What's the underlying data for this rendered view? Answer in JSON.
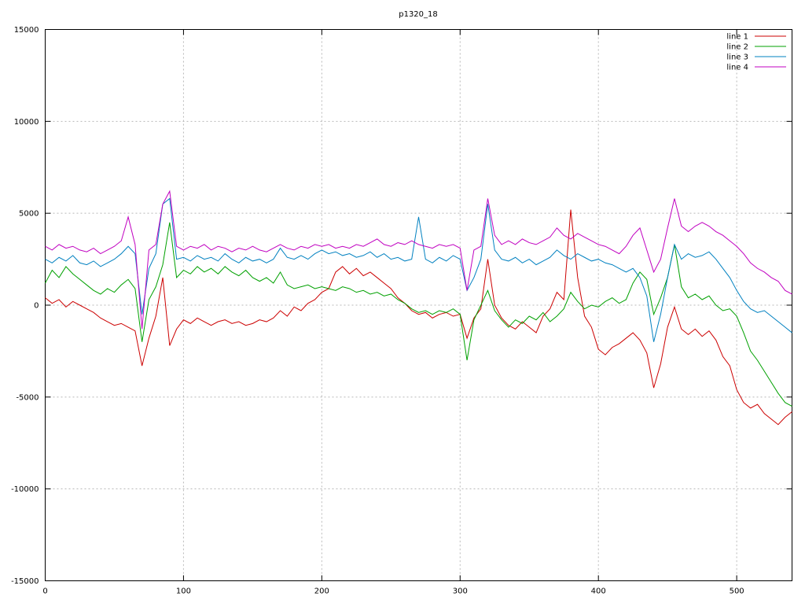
{
  "chart_data": {
    "type": "line",
    "title": "p1320_18",
    "xlabel": "",
    "ylabel": "",
    "xlim": [
      0,
      540
    ],
    "ylim": [
      -15000,
      15000
    ],
    "xticks": [
      0,
      100,
      200,
      300,
      400,
      500
    ],
    "yticks": [
      -15000,
      -10000,
      -5000,
      0,
      5000,
      10000,
      15000
    ],
    "grid": true,
    "legend_position": "top-right",
    "background": "#ffffff",
    "grid_color": "#b8b8b8",
    "border_color": "#000000",
    "x": [
      0,
      5,
      10,
      15,
      20,
      25,
      30,
      35,
      40,
      45,
      50,
      55,
      60,
      65,
      70,
      75,
      80,
      85,
      90,
      95,
      100,
      105,
      110,
      115,
      120,
      125,
      130,
      135,
      140,
      145,
      150,
      155,
      160,
      165,
      170,
      175,
      180,
      185,
      190,
      195,
      200,
      205,
      210,
      215,
      220,
      225,
      230,
      235,
      240,
      245,
      250,
      255,
      260,
      265,
      270,
      275,
      280,
      285,
      290,
      295,
      300,
      305,
      310,
      315,
      320,
      325,
      330,
      335,
      340,
      345,
      350,
      355,
      360,
      365,
      370,
      375,
      380,
      385,
      390,
      395,
      400,
      405,
      410,
      415,
      420,
      425,
      430,
      435,
      440,
      445,
      450,
      455,
      460,
      465,
      470,
      475,
      480,
      485,
      490,
      495,
      500,
      505,
      510,
      515,
      520,
      525,
      530,
      535,
      540
    ],
    "series": [
      {
        "name": "line 1",
        "color": "#cc0000",
        "values": [
          400,
          100,
          300,
          -100,
          200,
          0,
          -200,
          -400,
          -700,
          -900,
          -1100,
          -1000,
          -1200,
          -1400,
          -3300,
          -1800,
          -600,
          1500,
          -2200,
          -1300,
          -800,
          -1000,
          -700,
          -900,
          -1100,
          -900,
          -800,
          -1000,
          -900,
          -1100,
          -1000,
          -800,
          -900,
          -700,
          -300,
          -600,
          -100,
          -300,
          100,
          300,
          700,
          900,
          1800,
          2100,
          1700,
          2000,
          1600,
          1800,
          1500,
          1200,
          900,
          400,
          100,
          -300,
          -500,
          -400,
          -700,
          -500,
          -400,
          -600,
          -500,
          -1800,
          -700,
          -200,
          2500,
          0,
          -700,
          -1100,
          -1300,
          -900,
          -1200,
          -1500,
          -600,
          -200,
          700,
          300,
          5200,
          1500,
          -600,
          -1200,
          -2400,
          -2700,
          -2300,
          -2100,
          -1800,
          -1500,
          -1900,
          -2600,
          -4500,
          -3200,
          -1200,
          -100,
          -1300,
          -1600,
          -1300,
          -1700,
          -1400,
          -1900,
          -2800,
          -3300,
          -4600,
          -5300,
          -5600,
          -5400,
          -5900,
          -6200,
          -6500,
          -6100,
          -5800
        ]
      },
      {
        "name": "line 2",
        "color": "#00a000",
        "values": [
          1200,
          1900,
          1500,
          2100,
          1700,
          1400,
          1100,
          800,
          600,
          900,
          700,
          1100,
          1400,
          900,
          -2000,
          300,
          1000,
          2200,
          4500,
          1500,
          1900,
          1700,
          2100,
          1800,
          2000,
          1700,
          2100,
          1800,
          1600,
          1900,
          1500,
          1300,
          1500,
          1200,
          1800,
          1100,
          900,
          1000,
          1100,
          900,
          1000,
          900,
          800,
          1000,
          900,
          700,
          800,
          600,
          700,
          500,
          600,
          300,
          100,
          -200,
          -400,
          -300,
          -500,
          -300,
          -400,
          -200,
          -500,
          -3000,
          -800,
          0,
          800,
          -300,
          -800,
          -1200,
          -800,
          -1000,
          -600,
          -800,
          -400,
          -900,
          -600,
          -200,
          700,
          200,
          -200,
          0,
          -100,
          200,
          400,
          100,
          300,
          1200,
          1800,
          1400,
          -500,
          400,
          1500,
          3300,
          1000,
          400,
          600,
          300,
          500,
          0,
          -300,
          -200,
          -600,
          -1500,
          -2500,
          -3000,
          -3600,
          -4200,
          -4800,
          -5300,
          -5500
        ]
      },
      {
        "name": "line 3",
        "color": "#0080c0",
        "values": [
          2500,
          2300,
          2600,
          2400,
          2700,
          2300,
          2200,
          2400,
          2100,
          2300,
          2500,
          2800,
          3200,
          2800,
          -500,
          2000,
          2800,
          5500,
          5800,
          2500,
          2600,
          2400,
          2700,
          2500,
          2600,
          2400,
          2800,
          2500,
          2300,
          2600,
          2400,
          2500,
          2300,
          2500,
          3100,
          2600,
          2500,
          2700,
          2500,
          2800,
          3000,
          2800,
          2900,
          2700,
          2800,
          2600,
          2700,
          2900,
          2600,
          2800,
          2500,
          2600,
          2400,
          2500,
          4800,
          2500,
          2300,
          2600,
          2400,
          2700,
          2500,
          800,
          1500,
          2500,
          5500,
          3000,
          2500,
          2400,
          2600,
          2300,
          2500,
          2200,
          2400,
          2600,
          3000,
          2700,
          2500,
          2800,
          2600,
          2400,
          2500,
          2300,
          2200,
          2000,
          1800,
          2000,
          1500,
          500,
          -2000,
          -500,
          1500,
          3300,
          2500,
          2800,
          2600,
          2700,
          2900,
          2500,
          2000,
          1500,
          800,
          200,
          -200,
          -400,
          -300,
          -600,
          -900,
          -1200,
          -1500
        ]
      },
      {
        "name": "line 4",
        "color": "#c000c0",
        "values": [
          3200,
          3000,
          3300,
          3100,
          3200,
          3000,
          2900,
          3100,
          2800,
          3000,
          3200,
          3500,
          4800,
          3300,
          -1300,
          3000,
          3300,
          5500,
          6200,
          3200,
          3000,
          3200,
          3100,
          3300,
          3000,
          3200,
          3100,
          2900,
          3100,
          3000,
          3200,
          3000,
          2900,
          3100,
          3300,
          3100,
          3000,
          3200,
          3100,
          3300,
          3200,
          3300,
          3100,
          3200,
          3100,
          3300,
          3200,
          3400,
          3600,
          3300,
          3200,
          3400,
          3300,
          3500,
          3300,
          3200,
          3100,
          3300,
          3200,
          3300,
          3100,
          800,
          3000,
          3200,
          5800,
          3800,
          3300,
          3500,
          3300,
          3600,
          3400,
          3300,
          3500,
          3700,
          4200,
          3800,
          3600,
          3900,
          3700,
          3500,
          3300,
          3200,
          3000,
          2800,
          3200,
          3800,
          4200,
          3000,
          1800,
          2500,
          4200,
          5800,
          4300,
          4000,
          4300,
          4500,
          4300,
          4000,
          3800,
          3500,
          3200,
          2800,
          2300,
          2000,
          1800,
          1500,
          1300,
          800,
          600
        ]
      }
    ]
  }
}
